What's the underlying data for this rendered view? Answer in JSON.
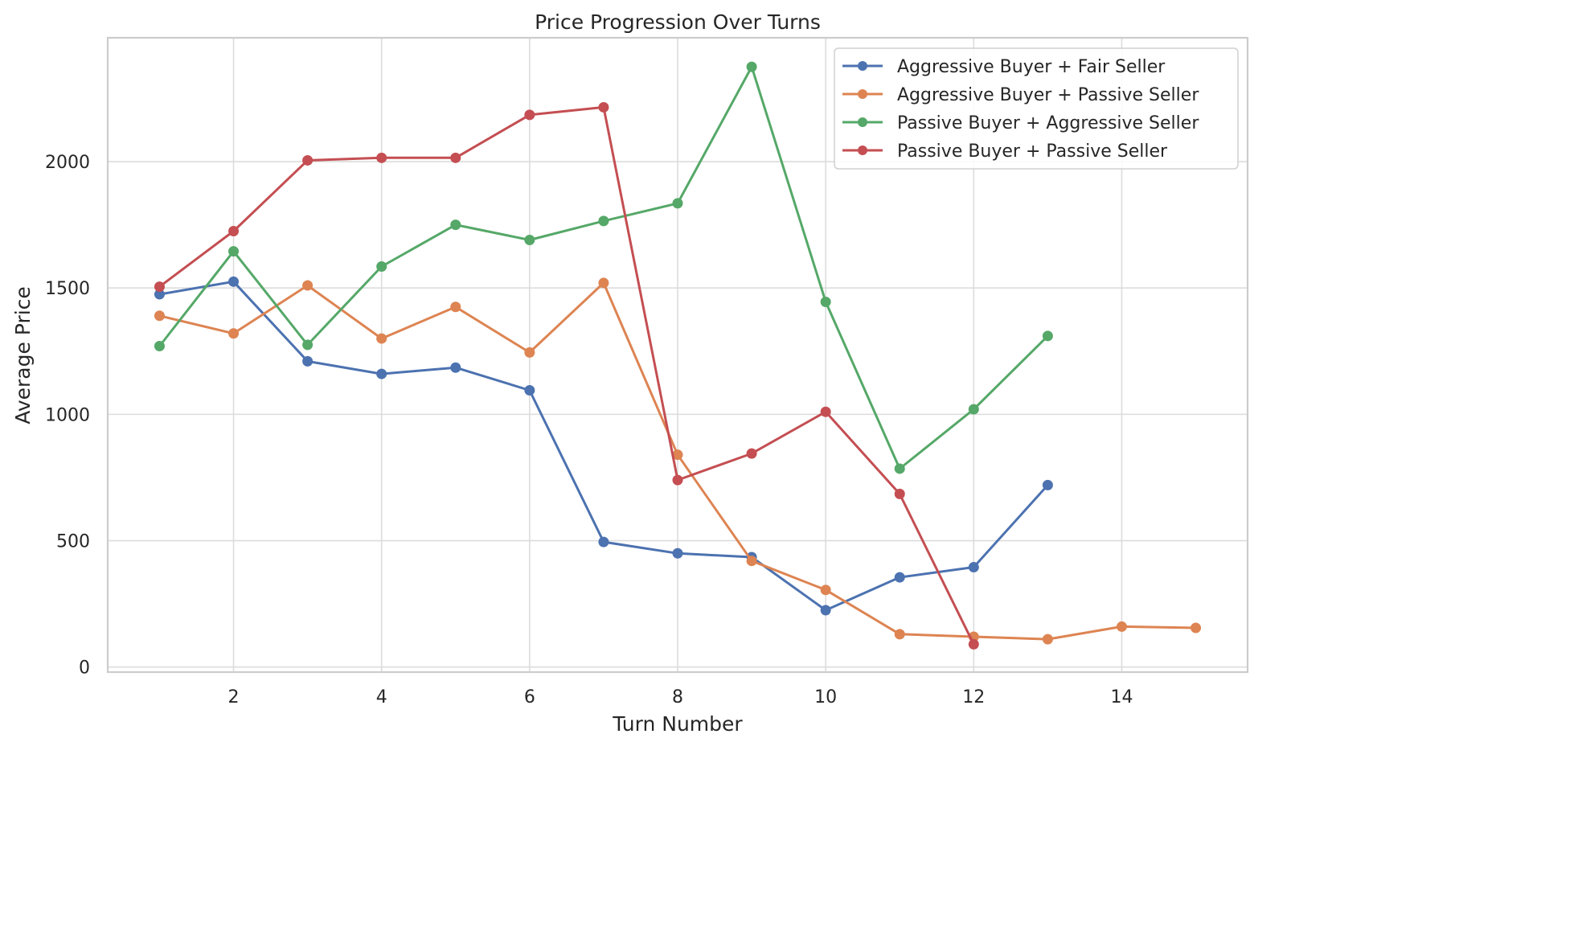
{
  "chart_data": {
    "type": "line",
    "title": "Price Progression Over Turns",
    "xlabel": "Turn Number",
    "ylabel": "Average Price",
    "xlim": [
      0.3,
      15.7
    ],
    "ylim": [
      -20,
      2490
    ],
    "xticks": [
      2,
      4,
      6,
      8,
      10,
      12,
      14
    ],
    "yticks": [
      0,
      500,
      1000,
      1500,
      2000
    ],
    "grid": true,
    "legend_position": "top-right",
    "series": [
      {
        "name": "Aggressive Buyer + Fair Seller",
        "color": "#4c72b0",
        "x": [
          1,
          2,
          3,
          4,
          5,
          6,
          7,
          8,
          9,
          10,
          11,
          12,
          13
        ],
        "values": [
          1475,
          1525,
          1210,
          1160,
          1185,
          1095,
          495,
          450,
          435,
          225,
          355,
          395,
          720
        ]
      },
      {
        "name": "Aggressive Buyer + Passive Seller",
        "color": "#dd8452",
        "x": [
          1,
          2,
          3,
          4,
          5,
          6,
          7,
          8,
          9,
          10,
          11,
          12,
          13,
          14,
          15
        ],
        "values": [
          1390,
          1320,
          1510,
          1300,
          1425,
          1245,
          1520,
          840,
          420,
          305,
          130,
          120,
          110,
          160,
          155
        ]
      },
      {
        "name": "Passive Buyer + Aggressive Seller",
        "color": "#55a868",
        "x": [
          1,
          2,
          3,
          4,
          5,
          6,
          7,
          8,
          9,
          10,
          11,
          12,
          13
        ],
        "values": [
          1270,
          1645,
          1275,
          1585,
          1750,
          1690,
          1765,
          1835,
          2375,
          1445,
          785,
          1020,
          1310
        ]
      },
      {
        "name": "Passive Buyer + Passive Seller",
        "color": "#c44e52",
        "x": [
          1,
          2,
          3,
          4,
          5,
          6,
          7,
          8,
          9,
          10,
          11,
          12
        ],
        "values": [
          1505,
          1725,
          2005,
          2015,
          2015,
          2185,
          2215,
          740,
          845,
          1010,
          685,
          90
        ]
      }
    ]
  }
}
